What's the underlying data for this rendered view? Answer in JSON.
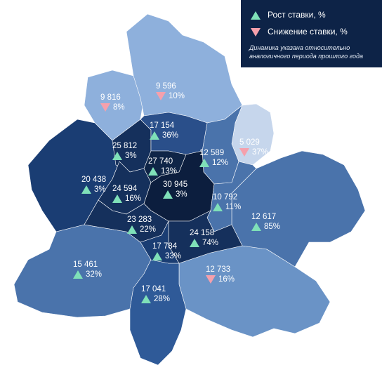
{
  "legend": {
    "up_label": "Рост ставки, %",
    "down_label": "Снижение ставки, %",
    "note": "Динамика указана относительно аналогичного периода прошлого года",
    "up_color": "#7fe0b8",
    "down_color": "#f5a0ac"
  },
  "regions": [
    {
      "id": "north-west",
      "value": "9 816",
      "change": "8%",
      "direction": "down"
    },
    {
      "id": "north",
      "value": "9 596",
      "change": "10%",
      "direction": "down"
    },
    {
      "id": "inner-north",
      "value": "17 154",
      "change": "36%",
      "direction": "up"
    },
    {
      "id": "north-east-inner",
      "value": "12 589",
      "change": "12%",
      "direction": "up"
    },
    {
      "id": "north-east-outer",
      "value": "5 029",
      "change": "37%",
      "direction": "down"
    },
    {
      "id": "inner-north-west",
      "value": "25 812",
      "change": "3%",
      "direction": "up"
    },
    {
      "id": "center-north",
      "value": "27 740",
      "change": "13%",
      "direction": "up"
    },
    {
      "id": "west-outer",
      "value": "20 438",
      "change": "3%",
      "direction": "up"
    },
    {
      "id": "west-inner",
      "value": "24 594",
      "change": "16%",
      "direction": "up"
    },
    {
      "id": "center",
      "value": "30 945",
      "change": "3%",
      "direction": "up"
    },
    {
      "id": "east-inner",
      "value": "10 792",
      "change": "11%",
      "direction": "up"
    },
    {
      "id": "east-outer",
      "value": "12 617",
      "change": "85%",
      "direction": "up"
    },
    {
      "id": "south-west-inner",
      "value": "23 283",
      "change": "22%",
      "direction": "up"
    },
    {
      "id": "south-east-inner",
      "value": "24 158",
      "change": "74%",
      "direction": "up"
    },
    {
      "id": "south-inner",
      "value": "17 784",
      "change": "33%",
      "direction": "up"
    },
    {
      "id": "south-west-outer",
      "value": "15 461",
      "change": "32%",
      "direction": "up"
    },
    {
      "id": "south-east-outer",
      "value": "12 733",
      "change": "16%",
      "direction": "down"
    },
    {
      "id": "south-outer",
      "value": "17 041",
      "change": "28%",
      "direction": "up"
    }
  ]
}
